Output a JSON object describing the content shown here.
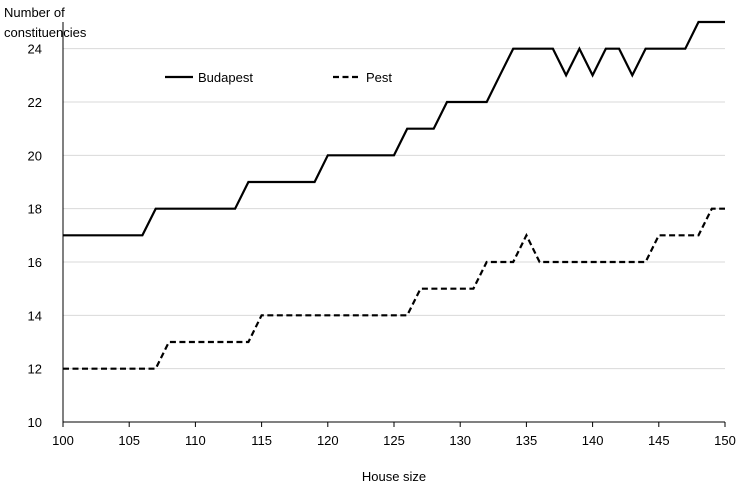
{
  "chart_data": {
    "type": "line",
    "title": "",
    "xlabel": "House size",
    "ylabel": "Number of\nconstituencies",
    "xlim": [
      100,
      150
    ],
    "ylim": [
      10,
      25
    ],
    "grid": "horizontal",
    "legend_position": "top-left",
    "x_ticks": [
      100,
      105,
      110,
      115,
      120,
      125,
      130,
      135,
      140,
      145,
      150
    ],
    "y_ticks": [
      10,
      12,
      14,
      16,
      18,
      20,
      22,
      24
    ],
    "x": [
      100,
      101,
      102,
      103,
      104,
      105,
      106,
      107,
      108,
      109,
      110,
      111,
      112,
      113,
      114,
      115,
      116,
      117,
      118,
      119,
      120,
      121,
      122,
      123,
      124,
      125,
      126,
      127,
      128,
      129,
      130,
      131,
      132,
      133,
      134,
      135,
      136,
      137,
      138,
      139,
      140,
      141,
      142,
      143,
      144,
      145,
      146,
      147,
      148,
      149,
      150
    ],
    "series": [
      {
        "name": "Budapest",
        "style": "solid",
        "color": "#000000",
        "values": [
          17,
          17,
          17,
          17,
          17,
          17,
          17,
          18,
          18,
          18,
          18,
          18,
          18,
          18,
          19,
          19,
          19,
          19,
          19,
          19,
          20,
          20,
          20,
          20,
          20,
          20,
          21,
          21,
          21,
          22,
          22,
          22,
          22,
          23,
          24,
          24,
          24,
          24,
          23,
          24,
          23,
          24,
          24,
          23,
          24,
          24,
          24,
          24,
          25,
          25,
          25
        ]
      },
      {
        "name": "Pest",
        "style": "dashed",
        "color": "#000000",
        "values": [
          12,
          12,
          12,
          12,
          12,
          12,
          12,
          12,
          13,
          13,
          13,
          13,
          13,
          13,
          13,
          14,
          14,
          14,
          14,
          14,
          14,
          14,
          14,
          14,
          14,
          14,
          14,
          15,
          15,
          15,
          15,
          15,
          16,
          16,
          16,
          17,
          16,
          16,
          16,
          16,
          16,
          16,
          16,
          16,
          16,
          17,
          17,
          17,
          17,
          18,
          18
        ]
      }
    ]
  }
}
